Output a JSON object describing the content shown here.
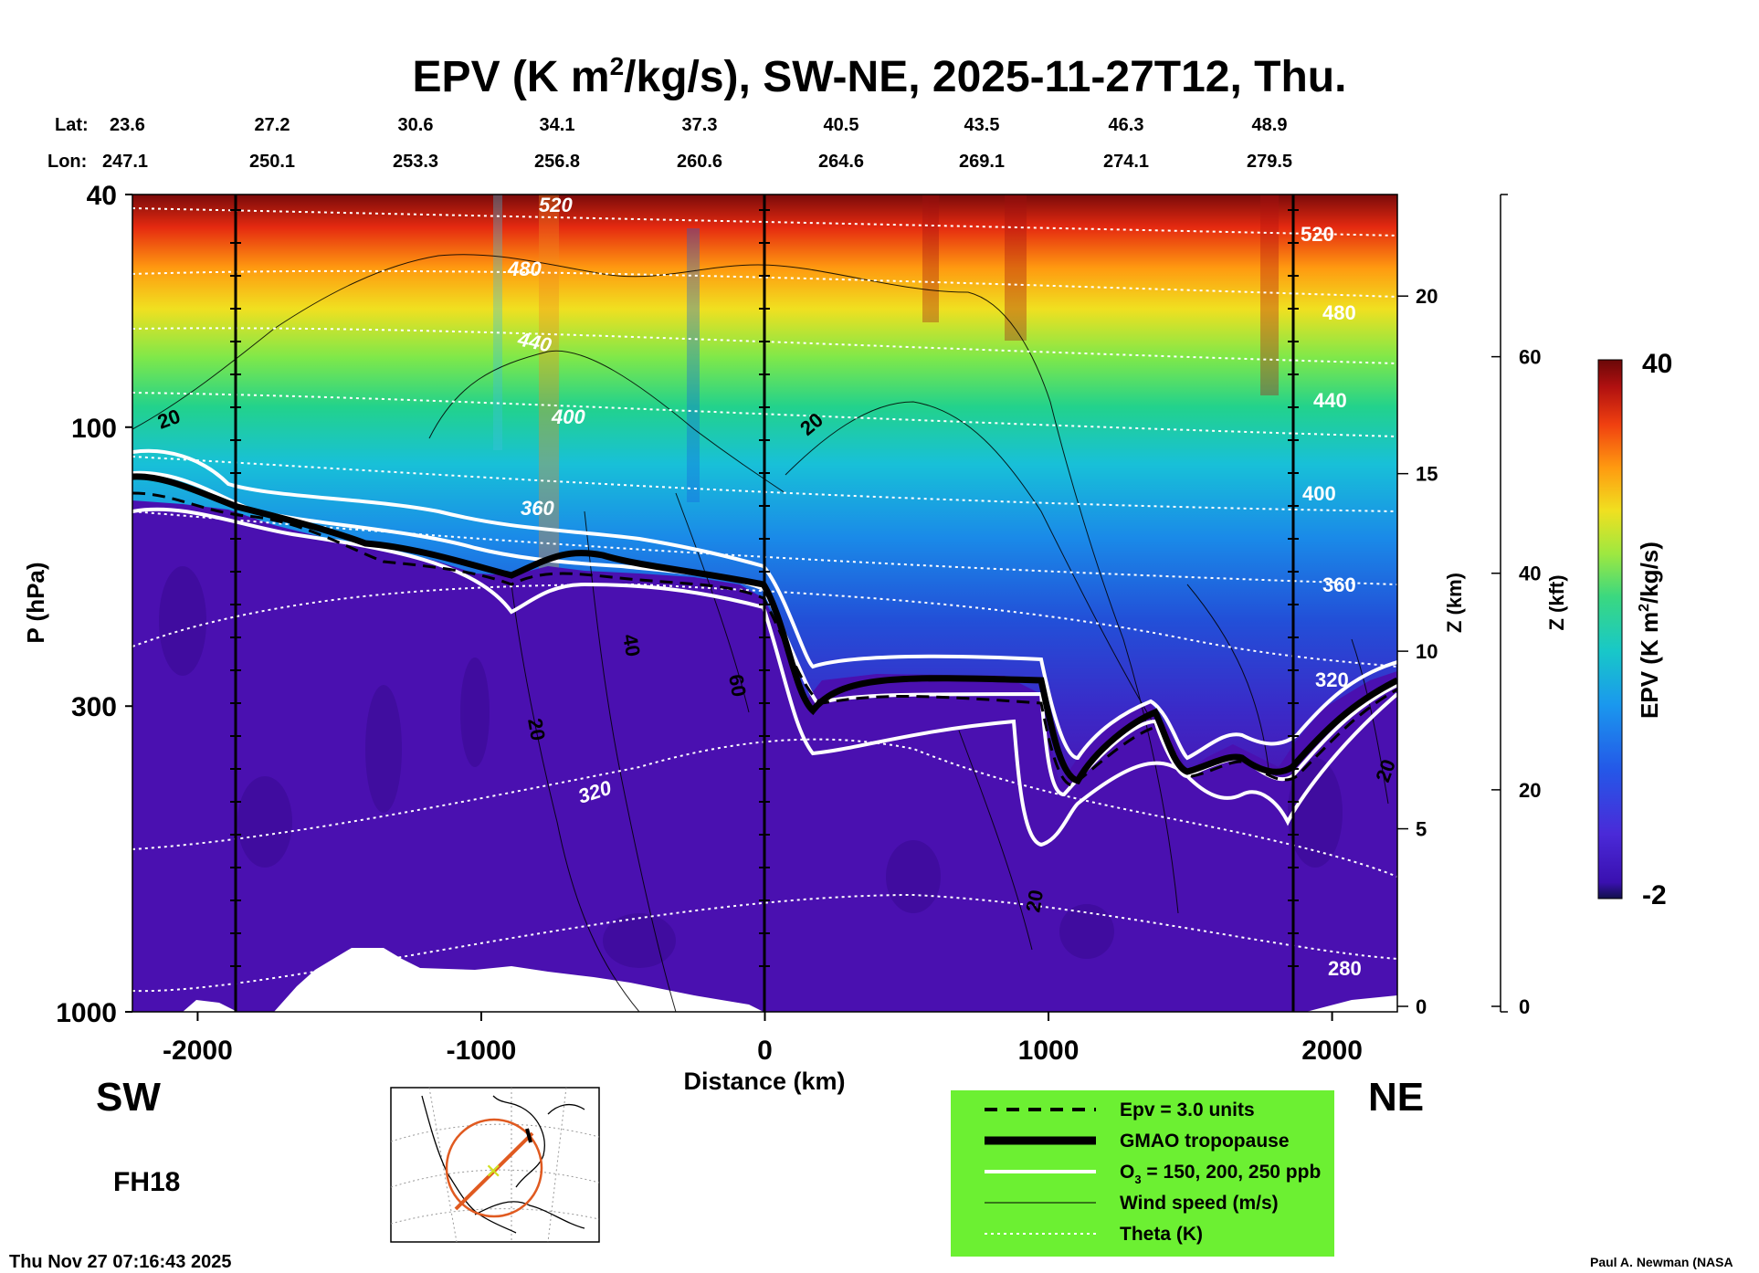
{
  "chart_data": {
    "type": "heatmap",
    "title_prefix": "EPV (K m",
    "title_sup": "2",
    "title_suffix": "/kg/s), SW-NE, 2025-11-27T12, Thu.",
    "lat_label": "Lat:",
    "lon_label": "Lon:",
    "lat_values": [
      "23.6",
      "27.2",
      "30.6",
      "34.1",
      "37.3",
      "40.5",
      "43.5",
      "46.3",
      "48.9"
    ],
    "lon_values": [
      "247.1",
      "250.1",
      "253.3",
      "256.8",
      "260.6",
      "264.6",
      "269.1",
      "274.1",
      "279.5"
    ],
    "ylabel": "P (hPa)",
    "yticks": [
      "40",
      "100",
      "300",
      "1000"
    ],
    "y_range_hpa": [
      1000,
      40
    ],
    "xlabel": "Distance (km)",
    "xticks": [
      "-2000",
      "-1000",
      "0",
      "1000",
      "2000"
    ],
    "x_range_km": [
      -2230,
      2230
    ],
    "zkm_label": "Z (km)",
    "zkm_ticks": [
      "20",
      "15",
      "10",
      "5",
      "0"
    ],
    "zkft_label": "Z (kft)",
    "zkft_ticks": [
      "60",
      "40",
      "20",
      "0"
    ],
    "colorbar_label_prefix": "EPV (K m",
    "colorbar_label_sup": "2",
    "colorbar_label_suffix": "/kg/s)",
    "colorbar_max": "40",
    "colorbar_min": "-2",
    "colorbar_range": [
      -2,
      40
    ],
    "theta_levels_left": [
      "520",
      "480",
      "440",
      "400",
      "360",
      "320"
    ],
    "theta_levels_right": [
      "520",
      "480",
      "440",
      "400",
      "360",
      "320",
      "280"
    ],
    "wind_labels": [
      "20",
      "20",
      "40",
      "60",
      "20",
      "20",
      "20"
    ],
    "legend": [
      {
        "style": "dashed",
        "label": "Epv = 3.0 units"
      },
      {
        "style": "thick",
        "label": "GMAO tropopause"
      },
      {
        "style": "white",
        "label": "O",
        "sub": "3",
        "label_rest": " = 150, 200, 250 ppb"
      },
      {
        "style": "thin",
        "label": "Wind speed (m/s)"
      },
      {
        "style": "dotted",
        "label": "Theta (K)"
      }
    ],
    "sw_label": "SW",
    "ne_label": "NE",
    "forecast_hour": "FH18",
    "timestamp": "Thu Nov 27 07:16:43 2025",
    "credit": "Paul A. Newman (NASA"
  },
  "colors": {
    "lowest": "#10104a",
    "trop": "#4a10b0",
    "legend_bg": "#6cf032"
  }
}
